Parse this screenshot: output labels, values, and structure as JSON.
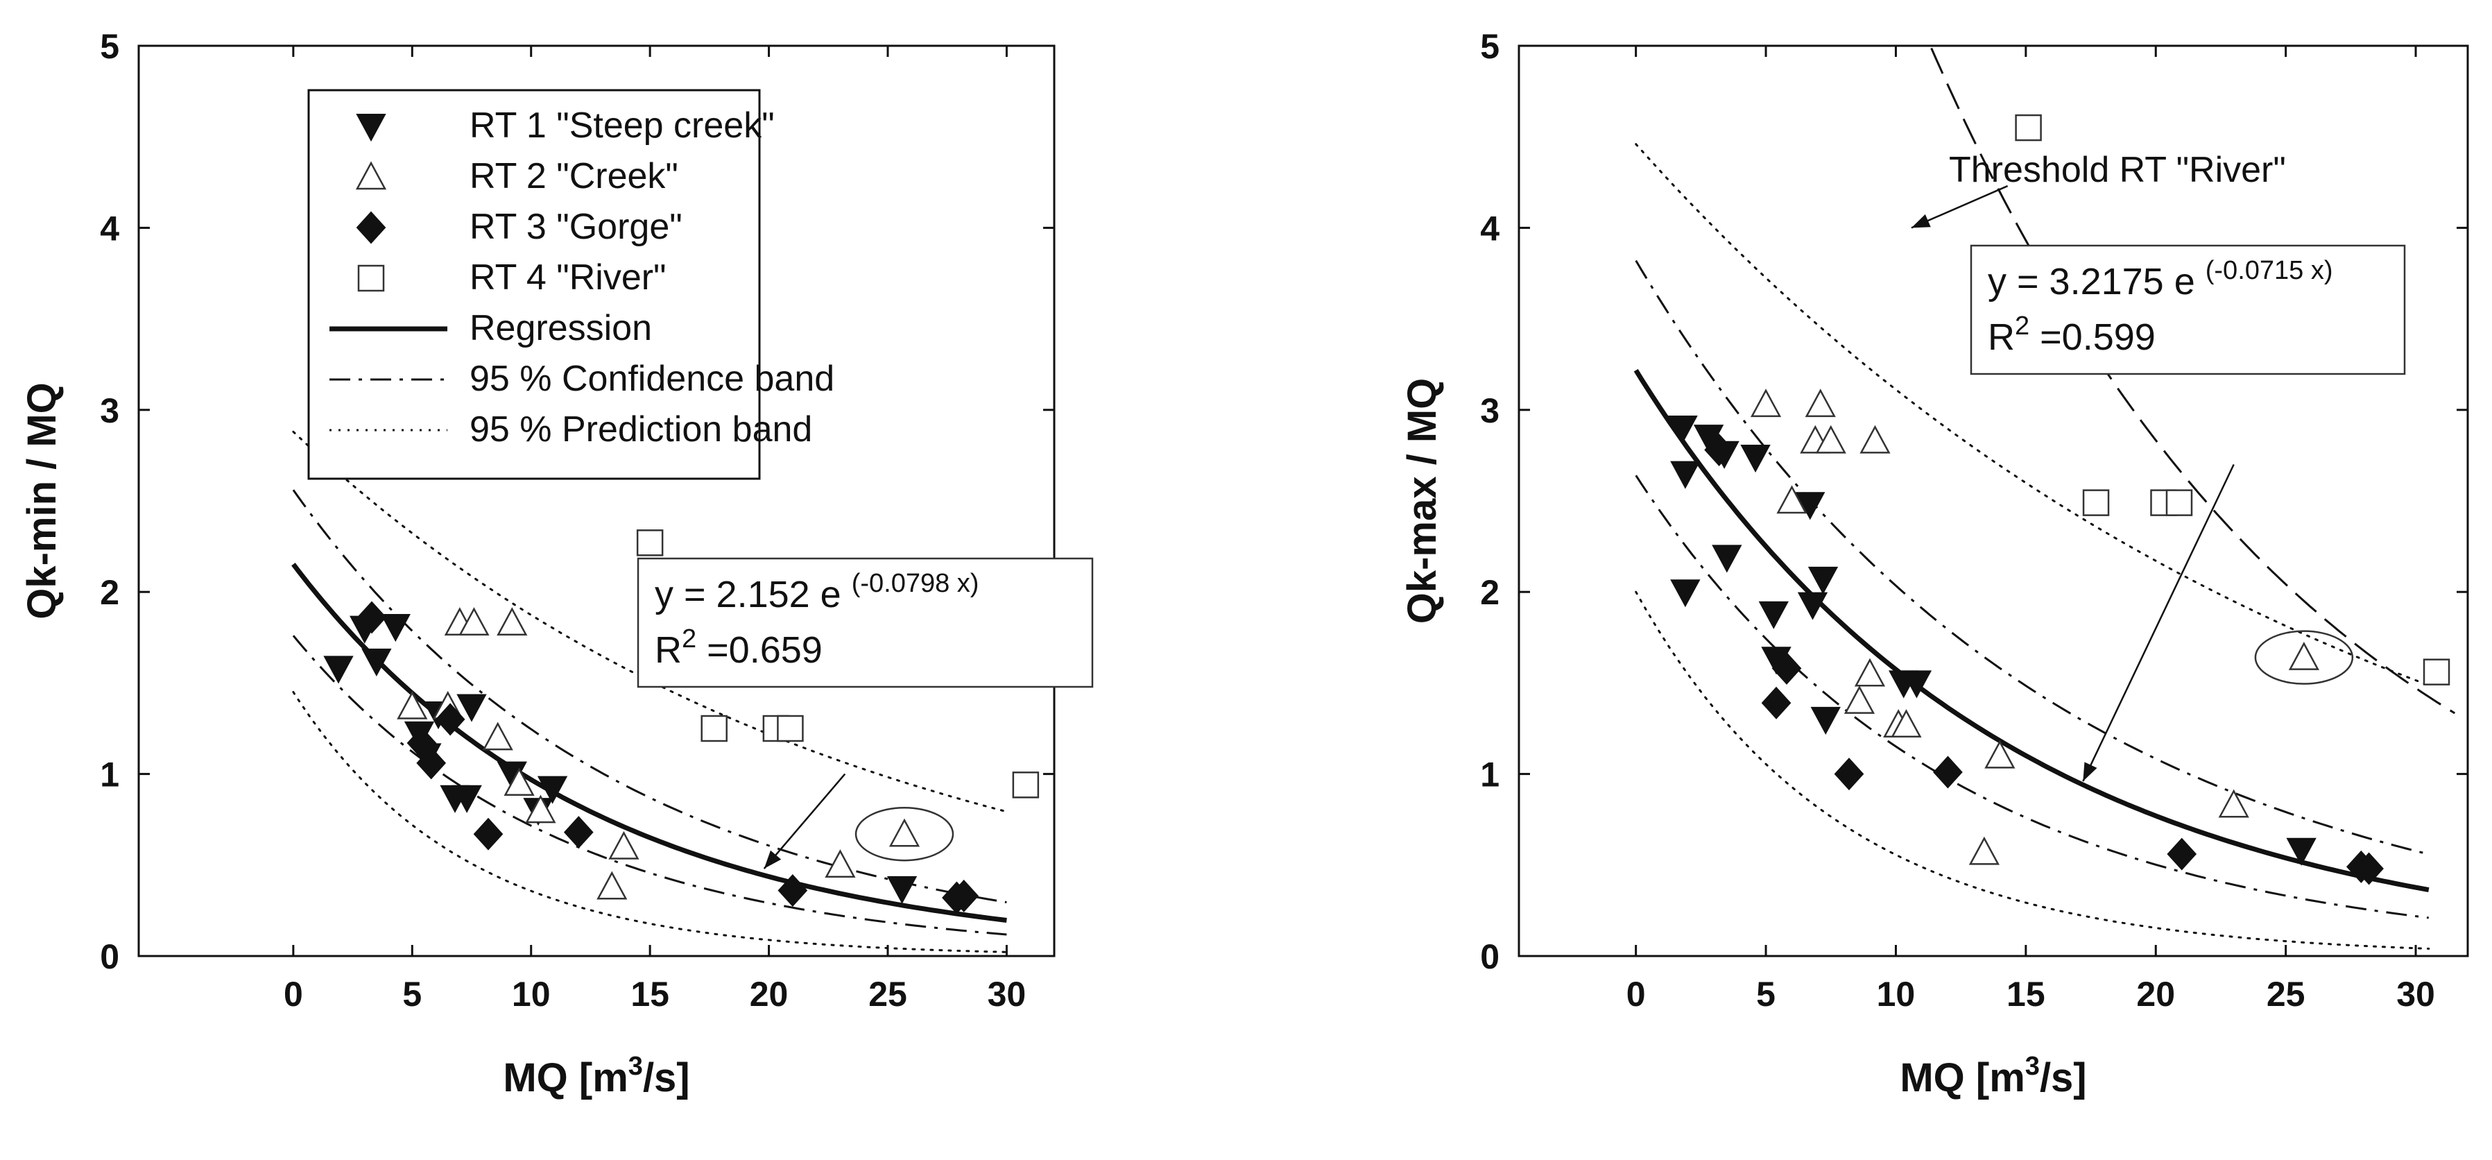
{
  "chart_data": [
    {
      "type": "scatter",
      "xlim": [
        -6.5,
        32
      ],
      "ylim": [
        0,
        5
      ],
      "xticks": [
        0,
        5,
        10,
        15,
        20,
        25,
        30
      ],
      "yticks": [
        0,
        1,
        2,
        3,
        4,
        5
      ],
      "xlabel": "MQ [m",
      "xlabel_sup": "3",
      "xlabel_suffix": "/s]",
      "ylabel": "Qk-min / MQ",
      "legend": {
        "position": "top-left",
        "entries": [
          {
            "key": "rt1",
            "label": "RT 1 \"Steep creek\"",
            "marker": "triangle-down-filled"
          },
          {
            "key": "rt2",
            "label": "RT 2 \"Creek\"",
            "marker": "triangle-up-open"
          },
          {
            "key": "rt3",
            "label": "RT 3 \"Gorge\"",
            "marker": "diamond-filled"
          },
          {
            "key": "rt4",
            "label": "RT 4 \"River\"",
            "marker": "square-open"
          },
          {
            "key": "reg",
            "label": "Regression",
            "line": "solid"
          },
          {
            "key": "conf",
            "label": "95 % Confidence band",
            "line": "dash-dot"
          },
          {
            "key": "pred",
            "label": "95 % Prediction band",
            "line": "dotted"
          }
        ]
      },
      "equation": {
        "main": "y = 2.152 e",
        "exponent": "(-0.0798 x)",
        "r2_prefix": "R",
        "r2_sup": "2",
        "r2_value": " =0.659"
      },
      "regression": {
        "a": 2.152,
        "b": -0.0798,
        "x_range": [
          0,
          30
        ]
      },
      "confidence_band": {
        "upper": {
          "a": 2.56,
          "b": -0.072,
          "x_range": [
            0,
            30
          ]
        },
        "lower": {
          "a": 1.76,
          "b": -0.09,
          "x_range": [
            0,
            30
          ]
        }
      },
      "prediction_band": {
        "upper": {
          "a": 2.88,
          "b": -0.043,
          "x_range": [
            0,
            30
          ]
        },
        "lower": {
          "a": 1.45,
          "b": -0.14,
          "x_range": [
            0,
            30
          ]
        }
      },
      "highlight": {
        "x": 25.7,
        "y": 0.67
      },
      "annotation_arrow": {
        "from": [
          23.2,
          1.0
        ],
        "to": [
          19.8,
          0.48
        ]
      },
      "series": [
        {
          "name": "RT 1 \"Steep creek\"",
          "marker": "triangle-down-filled",
          "points": [
            [
              1.9,
              1.58
            ],
            [
              3.0,
              1.8
            ],
            [
              3.5,
              1.62
            ],
            [
              4.3,
              1.81
            ],
            [
              5.3,
              1.22
            ],
            [
              5.6,
              1.1
            ],
            [
              6.1,
              1.33
            ],
            [
              6.8,
              0.87
            ],
            [
              7.3,
              0.87
            ],
            [
              7.5,
              1.37
            ],
            [
              9.2,
              1.0
            ],
            [
              10.3,
              0.8
            ],
            [
              10.9,
              0.92
            ],
            [
              25.6,
              0.37
            ]
          ]
        },
        {
          "name": "RT 2 \"Creek\"",
          "marker": "triangle-up-open",
          "points": [
            [
              5.0,
              1.37
            ],
            [
              6.5,
              1.37
            ],
            [
              7.0,
              1.83
            ],
            [
              7.6,
              1.83
            ],
            [
              9.2,
              1.83
            ],
            [
              8.6,
              1.2
            ],
            [
              9.5,
              0.95
            ],
            [
              10.4,
              0.8
            ],
            [
              13.4,
              0.38
            ],
            [
              13.9,
              0.6
            ],
            [
              23.0,
              0.5
            ],
            [
              25.7,
              0.67
            ]
          ]
        },
        {
          "name": "RT 3 \"Gorge\"",
          "marker": "diamond-filled",
          "points": [
            [
              3.3,
              1.86
            ],
            [
              5.4,
              1.17
            ],
            [
              5.8,
              1.06
            ],
            [
              6.6,
              1.3
            ],
            [
              8.2,
              0.67
            ],
            [
              12.0,
              0.68
            ],
            [
              21.0,
              0.36
            ],
            [
              27.9,
              0.32
            ],
            [
              28.2,
              0.33
            ]
          ]
        },
        {
          "name": "RT 4 \"River\"",
          "marker": "square-open",
          "points": [
            [
              15.0,
              2.27
            ],
            [
              17.7,
              1.25
            ],
            [
              20.3,
              1.25
            ],
            [
              20.9,
              1.25
            ],
            [
              30.8,
              0.94
            ]
          ]
        }
      ]
    },
    {
      "type": "scatter",
      "xlim": [
        -4.5,
        32
      ],
      "ylim": [
        0,
        5
      ],
      "xticks": [
        0,
        5,
        10,
        15,
        20,
        25,
        30
      ],
      "yticks": [
        0,
        1,
        2,
        3,
        4,
        5
      ],
      "xlabel": "MQ [m",
      "xlabel_sup": "3",
      "xlabel_suffix": "/s]",
      "ylabel": "Qk-max / MQ",
      "equation": {
        "main": "y = 3.2175 e",
        "exponent": "(-0.0715 x)",
        "r2_prefix": "R",
        "r2_sup": "2",
        "r2_value": " =0.599"
      },
      "regression": {
        "a": 3.2175,
        "b": -0.0715,
        "x_range": [
          0,
          30.5
        ]
      },
      "confidence_band": {
        "upper": {
          "a": 3.82,
          "b": -0.063,
          "x_range": [
            0,
            30.5
          ]
        },
        "lower": {
          "a": 2.64,
          "b": -0.083,
          "x_range": [
            0,
            30.5
          ]
        }
      },
      "prediction_band": {
        "upper": {
          "a": 4.46,
          "b": -0.036,
          "x_range": [
            0,
            30.5
          ]
        },
        "lower": {
          "a": 2.0,
          "b": -0.128,
          "x_range": [
            0,
            30.5
          ]
        }
      },
      "threshold": {
        "label": "Threshold RT \"River\"",
        "a": 10.5,
        "b": -0.0655,
        "x_range": [
          8.6,
          31.5
        ],
        "arrow_from": [
          14.3,
          4.23
        ],
        "arrow_to": [
          10.6,
          4.0
        ]
      },
      "highlight": {
        "x": 25.7,
        "y": 1.64
      },
      "annotation_arrow": {
        "from": [
          23.0,
          2.7
        ],
        "to": [
          17.2,
          0.96
        ]
      },
      "series": [
        {
          "name": "RT 1 \"Steep creek\"",
          "marker": "triangle-down-filled",
          "points": [
            [
              1.8,
              2.9
            ],
            [
              1.9,
              2.65
            ],
            [
              1.9,
              2.0
            ],
            [
              2.8,
              2.85
            ],
            [
              3.4,
              2.76
            ],
            [
              3.5,
              2.19
            ],
            [
              4.6,
              2.74
            ],
            [
              5.3,
              1.88
            ],
            [
              5.4,
              1.63
            ],
            [
              6.7,
              2.48
            ],
            [
              6.8,
              1.93
            ],
            [
              7.2,
              2.07
            ],
            [
              7.3,
              1.3
            ],
            [
              10.3,
              1.5
            ],
            [
              10.8,
              1.5
            ],
            [
              25.6,
              0.58
            ]
          ]
        },
        {
          "name": "RT 2 \"Creek\"",
          "marker": "triangle-up-open",
          "points": [
            [
              5.0,
              3.03
            ],
            [
              6.0,
              2.5
            ],
            [
              6.9,
              2.83
            ],
            [
              7.1,
              3.03
            ],
            [
              7.5,
              2.83
            ],
            [
              9.2,
              2.83
            ],
            [
              8.6,
              1.4
            ],
            [
              9.0,
              1.55
            ],
            [
              10.1,
              1.27
            ],
            [
              10.4,
              1.27
            ],
            [
              13.4,
              0.57
            ],
            [
              14.0,
              1.1
            ],
            [
              23.0,
              0.83
            ],
            [
              25.7,
              1.64
            ]
          ]
        },
        {
          "name": "RT 3 \"Gorge\"",
          "marker": "diamond-filled",
          "points": [
            [
              3.2,
              2.78
            ],
            [
              5.4,
              1.39
            ],
            [
              5.8,
              1.58
            ],
            [
              8.2,
              1.0
            ],
            [
              12.0,
              1.01
            ],
            [
              21.0,
              0.56
            ],
            [
              27.9,
              0.49
            ],
            [
              28.2,
              0.48
            ]
          ]
        },
        {
          "name": "RT 4 \"River\"",
          "marker": "square-open",
          "points": [
            [
              15.1,
              4.55
            ],
            [
              17.7,
              2.49
            ],
            [
              20.3,
              2.49
            ],
            [
              20.9,
              2.49
            ],
            [
              30.8,
              1.56
            ]
          ]
        }
      ]
    }
  ]
}
